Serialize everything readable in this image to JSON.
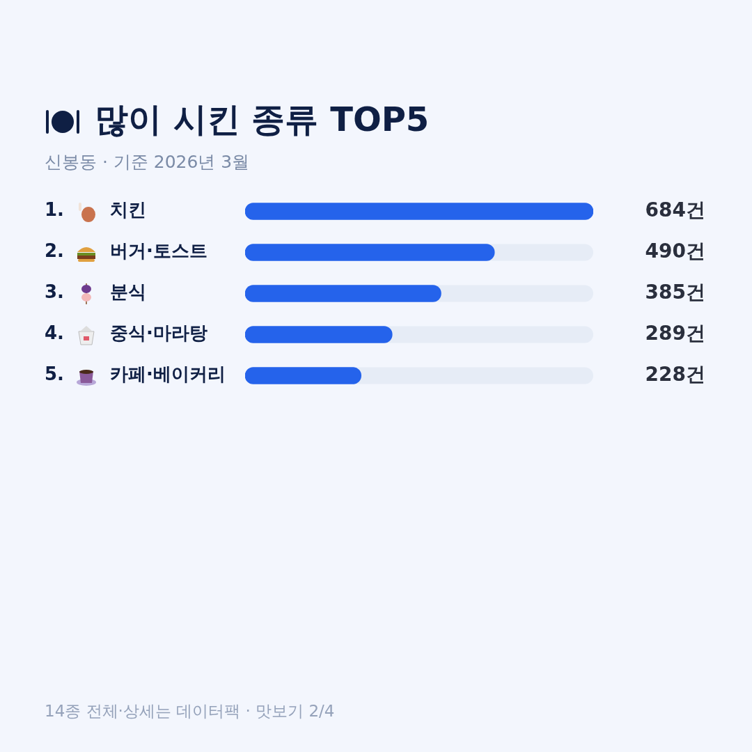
{
  "chart_data": {
    "type": "bar",
    "orientation": "horizontal",
    "title": "많이 시킨 종류 TOP5",
    "subtitle": "신봉동 · 기준 2026년 3월",
    "categories": [
      "1. 치킨",
      "2. 버거·토스트",
      "3. 분식",
      "4. 중식·마라탕",
      "5. 카페·베이커리"
    ],
    "values": [
      684,
      490,
      385,
      289,
      228
    ],
    "value_labels": [
      "684건",
      "490건",
      "385건",
      "289건",
      "228건"
    ],
    "color": "#2563eb",
    "xlim": [
      0,
      684
    ],
    "tick_labels": "y",
    "legend": false,
    "annotations": [
      "14종 전체·상세는 데이터팩 · 맛보기 2/4"
    ]
  }
}
